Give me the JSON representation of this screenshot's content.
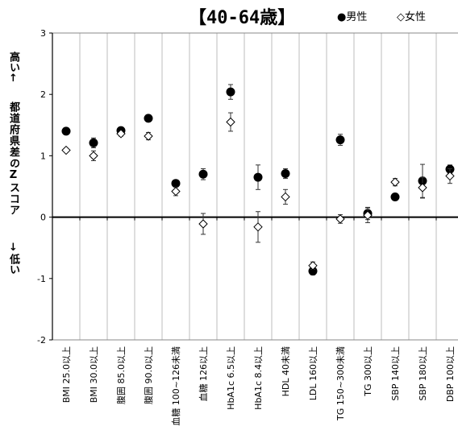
{
  "chart_data": {
    "type": "scatter",
    "title": "【40-64歳】",
    "ylabel_top": "高い↑",
    "ylabel_mid": "都道府県差のZスコア",
    "ylabel_bottom": "↓低い",
    "ylim": [
      -2,
      3
    ],
    "y_ticks": [
      "3",
      "2",
      "1",
      "0",
      "-1",
      "-2"
    ],
    "grid": true,
    "legend_position": "top-right",
    "categories": [
      "BMI 25.0以上",
      "BMI 30.0以上",
      "腹囲 85.0以上",
      "腹囲 90.0以上",
      "血糖 100~126未満",
      "血糖 126以上",
      "HbA1c 6.5以上",
      "HbA1c 8.4以上",
      "HDL 40未満",
      "LDL 160以上",
      "TG 150~300未満",
      "TG 300以上",
      "SBP 140以上",
      "SBP 180以上",
      "DBP 100以上"
    ],
    "series": [
      {
        "name": "●男性",
        "marker": "filled-circle",
        "color": "#000000",
        "values": [
          1.4,
          1.21,
          1.41,
          1.61,
          0.55,
          0.7,
          2.04,
          0.65,
          0.71,
          -0.88,
          1.26,
          0.06,
          0.33,
          0.59,
          0.78
        ],
        "err": [
          0.02,
          0.08,
          0.04,
          0.04,
          0.05,
          0.09,
          0.12,
          0.2,
          0.08,
          0.06,
          0.09,
          0.1,
          0.03,
          0.27,
          0.07
        ]
      },
      {
        "name": "◇女性",
        "marker": "open-diamond",
        "color": "#000000",
        "values": [
          1.09,
          1.0,
          1.36,
          1.32,
          0.42,
          -0.11,
          1.55,
          -0.16,
          0.33,
          -0.79,
          -0.03,
          0.03,
          0.57,
          0.48,
          0.67
        ],
        "err": [
          0.03,
          0.08,
          0.04,
          0.06,
          0.07,
          0.17,
          0.15,
          0.25,
          0.12,
          0.06,
          0.07,
          0.12,
          0.06,
          0.17,
          0.12
        ]
      }
    ]
  }
}
